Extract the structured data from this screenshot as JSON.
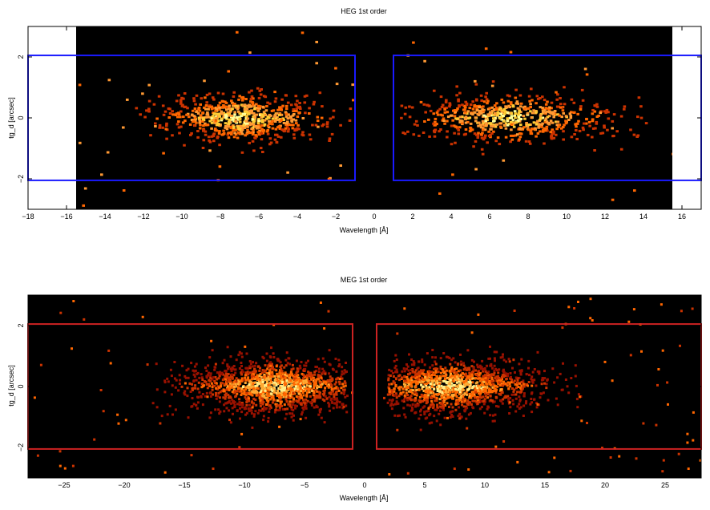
{
  "chart_data": [
    {
      "type": "heatmap",
      "title": "HEG 1st order",
      "xlabel": "Wavelength [Å]",
      "ylabel": "tg_d [arcsec]",
      "xlim": [
        -18,
        17
      ],
      "ylim": [
        -3,
        3
      ],
      "xticks": [
        -18,
        -16,
        -14,
        -12,
        -10,
        -8,
        -6,
        -4,
        -2,
        0,
        2,
        4,
        6,
        8,
        10,
        12,
        14,
        16
      ],
      "xtick_labels": [
        "−18",
        "−16",
        "−14",
        "−12",
        "−10",
        "−8",
        "−6",
        "−4",
        "−2",
        "0",
        "2",
        "4",
        "6",
        "8",
        "10",
        "12",
        "14",
        "16"
      ],
      "yticks": [
        -2,
        0,
        2
      ],
      "ytick_labels": [
        "−2",
        "0",
        "2"
      ],
      "data_range_x": [
        -15.5,
        15.5
      ],
      "background_color": "#000000",
      "colormap": [
        "#cc3300",
        "#ff6600",
        "#ff9933",
        "#ffcc33",
        "#ffff99"
      ],
      "regions_color": "#1a1aff",
      "regions": [
        {
          "x": [
            -18,
            -1.0
          ],
          "y": [
            -2.05,
            2.05
          ]
        },
        {
          "x": [
            1.0,
            17
          ],
          "y": [
            -2.05,
            2.05
          ]
        }
      ],
      "clusters": [
        {
          "center": -7.0,
          "x_range": [
            -12.5,
            -1.2
          ],
          "count": 700
        },
        {
          "center": 7.0,
          "x_range": [
            1.2,
            14.2
          ],
          "count": 650
        }
      ],
      "y_spread": 0.38,
      "n_outliers": 70,
      "pixel_size": 0.15,
      "grid": false
    },
    {
      "type": "heatmap",
      "title": "MEG 1st order",
      "xlabel": "Wavelength [Å]",
      "ylabel": "tg_d [arcsec]",
      "xlim": [
        -28,
        28
      ],
      "ylim": [
        -3,
        3
      ],
      "xticks": [
        -25,
        -20,
        -15,
        -10,
        -5,
        0,
        5,
        10,
        15,
        20,
        25
      ],
      "xtick_labels": [
        "−25",
        "−20",
        "−15",
        "−10",
        "−5",
        "0",
        "5",
        "10",
        "15",
        "20",
        "25"
      ],
      "yticks": [
        -2,
        0,
        2
      ],
      "ytick_labels": [
        "−2",
        "0",
        "2"
      ],
      "data_range_x": [
        -28,
        28
      ],
      "background_color": "#000000",
      "colormap": [
        "#991100",
        "#cc3300",
        "#ff6600",
        "#ffaa33",
        "#ffee88"
      ],
      "regions_color": "#cc2222",
      "regions": [
        {
          "x": [
            -28,
            -1.0
          ],
          "y": [
            -2.05,
            2.05
          ]
        },
        {
          "x": [
            1.0,
            28
          ],
          "y": [
            -2.05,
            2.05
          ]
        }
      ],
      "clusters": [
        {
          "center": -7.5,
          "x_range": [
            -18,
            -1.5
          ],
          "count": 1400
        },
        {
          "center": 7.0,
          "x_range": [
            1.8,
            18
          ],
          "count": 1300
        }
      ],
      "y_spread": 0.42,
      "n_outliers": 120,
      "pixel_size": 0.2,
      "grid": false
    }
  ]
}
